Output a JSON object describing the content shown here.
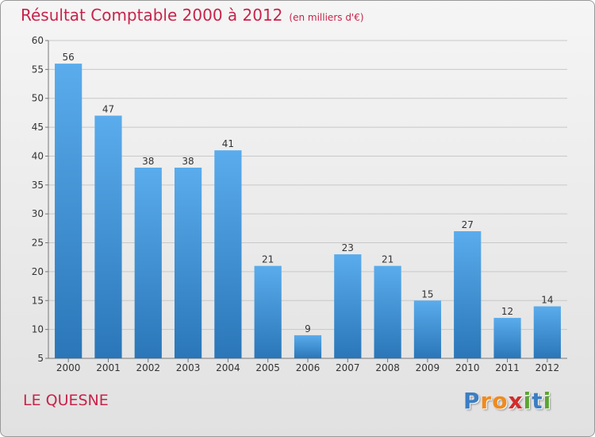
{
  "chart_data": {
    "type": "bar",
    "title": "Résultat Comptable 2000 à 2012",
    "subtitle": "(en milliers d'€)",
    "categories": [
      "2000",
      "2001",
      "2002",
      "2003",
      "2004",
      "2005",
      "2006",
      "2007",
      "2008",
      "2009",
      "2010",
      "2011",
      "2012"
    ],
    "values": [
      56,
      47,
      38,
      38,
      41,
      21,
      9,
      23,
      21,
      15,
      27,
      12,
      14
    ],
    "ylim": [
      5,
      60
    ],
    "yticks": [
      5,
      10,
      15,
      20,
      25,
      30,
      35,
      40,
      45,
      50,
      55,
      60
    ],
    "xlabel": "",
    "ylabel": "",
    "grid": true,
    "bar_color": "#3d8fd6",
    "accent_color": "#c8234a"
  },
  "footer": {
    "town": "LE QUESNE",
    "logo_letters": [
      "P",
      "r",
      "o",
      "x",
      "i",
      "t",
      "i"
    ],
    "logo_colors": [
      "#3a7fc4",
      "#f08a1e",
      "#f08a1e",
      "#d42a2a",
      "#5aa532",
      "#3a7fc4",
      "#5aa532"
    ]
  }
}
